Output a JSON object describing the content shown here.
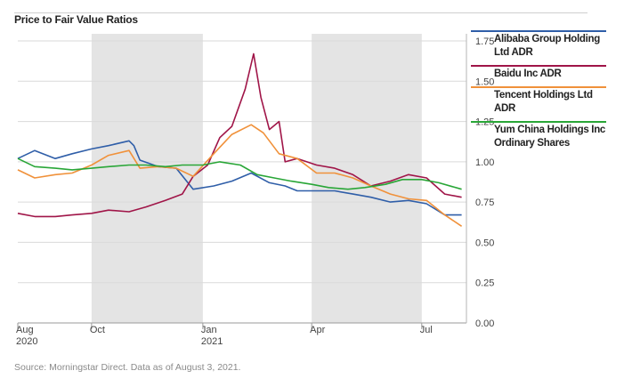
{
  "title": "Price to Fair Value Ratios",
  "source": "Source: Morningstar Direct.  Data as of August 3, 2021.",
  "chart_data": {
    "type": "line",
    "title": "Price to Fair Value Ratios",
    "ylim": [
      0,
      1.75
    ],
    "yticks": [
      "0.00",
      "0.25",
      "0.50",
      "0.75",
      "1.00",
      "1.25",
      "1.50",
      "1.75"
    ],
    "xlim": [
      "2020-08-01",
      "2021-08-04"
    ],
    "xticks": [
      {
        "date": "2020-08-01",
        "label": "Aug",
        "label2": "2020"
      },
      {
        "date": "2020-10-01",
        "label": "Oct",
        "label2": ""
      },
      {
        "date": "2021-01-01",
        "label": "Jan",
        "label2": "2021"
      },
      {
        "date": "2021-04-01",
        "label": "Apr",
        "label2": ""
      },
      {
        "date": "2021-07-01",
        "label": "Jul",
        "label2": ""
      }
    ],
    "shaded_bands": [
      [
        "2020-10-01",
        "2021-01-01"
      ],
      [
        "2021-04-01",
        "2021-07-01"
      ]
    ],
    "grid": true,
    "legend": "right",
    "series": [
      {
        "name": "Alibaba Group Holding Ltd ADR",
        "color": "#2f5ea8",
        "points": [
          [
            "2020-08-01",
            1.02
          ],
          [
            "2020-08-15",
            1.07
          ],
          [
            "2020-09-01",
            1.02
          ],
          [
            "2020-09-15",
            1.05
          ],
          [
            "2020-10-01",
            1.08
          ],
          [
            "2020-10-15",
            1.1
          ],
          [
            "2020-11-01",
            1.13
          ],
          [
            "2020-11-05",
            1.1
          ],
          [
            "2020-11-10",
            1.01
          ],
          [
            "2020-11-25",
            0.97
          ],
          [
            "2020-12-10",
            0.96
          ],
          [
            "2020-12-24",
            0.83
          ],
          [
            "2021-01-10",
            0.85
          ],
          [
            "2021-01-25",
            0.88
          ],
          [
            "2021-02-10",
            0.93
          ],
          [
            "2021-02-25",
            0.87
          ],
          [
            "2021-03-10",
            0.85
          ],
          [
            "2021-03-20",
            0.82
          ],
          [
            "2021-04-05",
            0.82
          ],
          [
            "2021-04-20",
            0.82
          ],
          [
            "2021-05-05",
            0.8
          ],
          [
            "2021-05-20",
            0.78
          ],
          [
            "2021-06-05",
            0.75
          ],
          [
            "2021-06-20",
            0.76
          ],
          [
            "2021-07-05",
            0.74
          ],
          [
            "2021-07-20",
            0.67
          ],
          [
            "2021-08-03",
            0.67
          ]
        ]
      },
      {
        "name": "Baidu Inc ADR",
        "color": "#a01548",
        "points": [
          [
            "2020-08-01",
            0.68
          ],
          [
            "2020-08-15",
            0.66
          ],
          [
            "2020-09-01",
            0.66
          ],
          [
            "2020-09-15",
            0.67
          ],
          [
            "2020-10-01",
            0.68
          ],
          [
            "2020-10-15",
            0.7
          ],
          [
            "2020-11-01",
            0.69
          ],
          [
            "2020-11-15",
            0.72
          ],
          [
            "2020-12-01",
            0.76
          ],
          [
            "2020-12-15",
            0.8
          ],
          [
            "2020-12-24",
            0.91
          ],
          [
            "2021-01-05",
            0.98
          ],
          [
            "2021-01-15",
            1.15
          ],
          [
            "2021-01-25",
            1.22
          ],
          [
            "2021-02-05",
            1.45
          ],
          [
            "2021-02-12",
            1.67
          ],
          [
            "2021-02-18",
            1.4
          ],
          [
            "2021-02-25",
            1.2
          ],
          [
            "2021-03-05",
            1.25
          ],
          [
            "2021-03-10",
            1.0
          ],
          [
            "2021-03-20",
            1.02
          ],
          [
            "2021-04-05",
            0.98
          ],
          [
            "2021-04-20",
            0.96
          ],
          [
            "2021-05-05",
            0.92
          ],
          [
            "2021-05-20",
            0.85
          ],
          [
            "2021-06-05",
            0.88
          ],
          [
            "2021-06-20",
            0.92
          ],
          [
            "2021-07-05",
            0.9
          ],
          [
            "2021-07-20",
            0.8
          ],
          [
            "2021-08-03",
            0.78
          ]
        ]
      },
      {
        "name": "Tencent Holdings Ltd ADR",
        "color": "#f0913a",
        "points": [
          [
            "2020-08-01",
            0.95
          ],
          [
            "2020-08-15",
            0.9
          ],
          [
            "2020-09-01",
            0.92
          ],
          [
            "2020-09-15",
            0.93
          ],
          [
            "2020-10-01",
            0.98
          ],
          [
            "2020-10-15",
            1.04
          ],
          [
            "2020-11-01",
            1.07
          ],
          [
            "2020-11-10",
            0.96
          ],
          [
            "2020-11-25",
            0.97
          ],
          [
            "2020-12-10",
            0.96
          ],
          [
            "2020-12-24",
            0.91
          ],
          [
            "2021-01-10",
            1.05
          ],
          [
            "2021-01-25",
            1.17
          ],
          [
            "2021-02-10",
            1.23
          ],
          [
            "2021-02-20",
            1.18
          ],
          [
            "2021-03-05",
            1.05
          ],
          [
            "2021-03-20",
            1.02
          ],
          [
            "2021-04-05",
            0.93
          ],
          [
            "2021-04-20",
            0.93
          ],
          [
            "2021-05-05",
            0.9
          ],
          [
            "2021-05-20",
            0.85
          ],
          [
            "2021-06-05",
            0.8
          ],
          [
            "2021-06-20",
            0.77
          ],
          [
            "2021-07-05",
            0.76
          ],
          [
            "2021-07-20",
            0.67
          ],
          [
            "2021-08-03",
            0.6
          ]
        ]
      },
      {
        "name": "Yum China Holdings Inc Ordinary Shares",
        "color": "#29a637",
        "points": [
          [
            "2020-08-01",
            1.02
          ],
          [
            "2020-08-15",
            0.97
          ],
          [
            "2020-09-01",
            0.96
          ],
          [
            "2020-09-15",
            0.95
          ],
          [
            "2020-10-01",
            0.96
          ],
          [
            "2020-10-15",
            0.97
          ],
          [
            "2020-11-01",
            0.98
          ],
          [
            "2020-11-15",
            0.98
          ],
          [
            "2020-12-01",
            0.97
          ],
          [
            "2020-12-15",
            0.98
          ],
          [
            "2021-01-01",
            0.98
          ],
          [
            "2021-01-15",
            1.0
          ],
          [
            "2021-02-01",
            0.98
          ],
          [
            "2021-02-15",
            0.92
          ],
          [
            "2021-03-01",
            0.9
          ],
          [
            "2021-03-15",
            0.88
          ],
          [
            "2021-04-01",
            0.86
          ],
          [
            "2021-04-15",
            0.84
          ],
          [
            "2021-05-01",
            0.83
          ],
          [
            "2021-05-15",
            0.84
          ],
          [
            "2021-06-01",
            0.86
          ],
          [
            "2021-06-15",
            0.89
          ],
          [
            "2021-07-01",
            0.89
          ],
          [
            "2021-07-15",
            0.87
          ],
          [
            "2021-08-03",
            0.83
          ]
        ]
      }
    ]
  }
}
